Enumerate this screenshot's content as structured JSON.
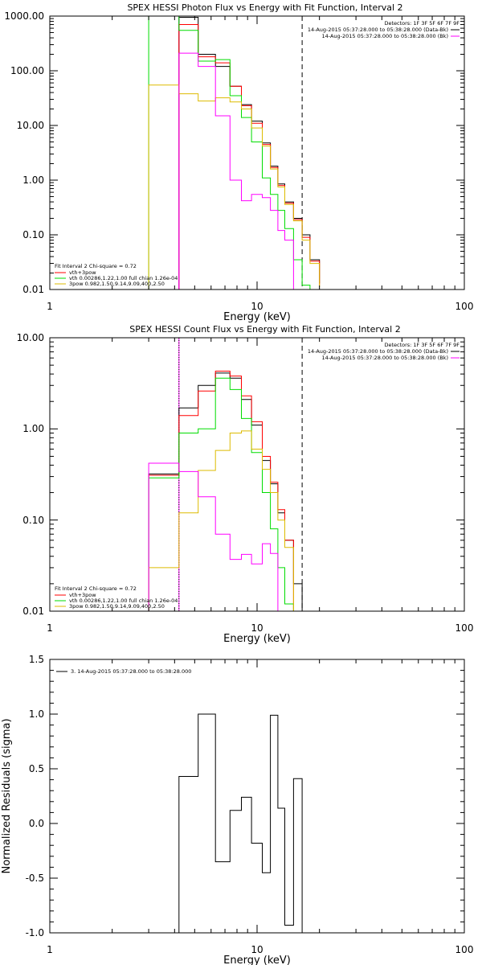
{
  "chart_data": [
    {
      "type": "line",
      "title": "SPEX HESSI Photon Flux vs Energy with Fit Function, Interval 2",
      "xlabel": "Energy (keV)",
      "ylabel": "",
      "xscale": "log",
      "yscale": "log",
      "xlim": [
        1,
        100
      ],
      "ylim": [
        0.01,
        1000
      ],
      "x_ticks": [
        "1",
        "10",
        "100"
      ],
      "y_ticks": [
        "0.01",
        "0.10",
        "1.00",
        "10.00",
        "100.00",
        "1000.00"
      ],
      "vlines": [
        {
          "x": 4.2,
          "color": "#ff00ff",
          "style": "solid"
        },
        {
          "x": 16.5,
          "color": "#000000",
          "style": "dashed"
        }
      ],
      "edges": [
        3.0,
        4.2,
        5.2,
        6.3,
        7.4,
        8.4,
        9.4,
        10.6,
        11.6,
        12.6,
        13.6,
        15.0,
        16.5,
        18.0,
        20.0
      ],
      "series": [
        {
          "name": "Data",
          "color": "#000000",
          "values": [
            null,
            950,
            200,
            120,
            52,
            24,
            12,
            4.8,
            1.8,
            0.85,
            0.4,
            0.2,
            0.1,
            0.035,
            0.013
          ]
        },
        {
          "name": "vth+3pow",
          "color": "#ff0000",
          "values": [
            null,
            700,
            180,
            140,
            52,
            23,
            11,
            4.5,
            1.7,
            0.8,
            0.38,
            0.19,
            0.09,
            0.033,
            0.012
          ]
        },
        {
          "name": "vth 0.00286,1.22,1.00 full chian 1.26e-04",
          "color": "#00dd00",
          "values": [
            1200,
            550,
            150,
            160,
            35,
            14,
            5.0,
            1.1,
            0.55,
            0.28,
            0.13,
            0.035,
            0.012,
            null,
            null
          ]
        },
        {
          "name": "3pow 0.982,1.50,9.14,9.09,400,2.50",
          "color": "#ddbb00",
          "values": [
            55,
            38,
            28,
            32,
            27,
            20,
            9.0,
            4.2,
            1.6,
            0.75,
            0.36,
            0.18,
            0.08,
            0.03,
            0.011
          ]
        },
        {
          "name": "",
          "color": "#ff00ff",
          "values": [
            null,
            210,
            120,
            15,
            1.0,
            0.42,
            0.55,
            0.48,
            0.28,
            0.12,
            0.08,
            null,
            null,
            null,
            null
          ]
        }
      ],
      "annotations": [
        "Detectors: 1F 3F 5F 6F 7F 9F",
        "14-Aug-2015 05:37:28.000 to 05:38:28.000 (Data-Bk)",
        "14-Aug-2015 05:37:28.000 to 05:38:28.000 (Bk)"
      ],
      "legend": {
        "title": "Fit Interval 2   Chi-square = 0.72",
        "placement": "bottom-left"
      }
    },
    {
      "type": "line",
      "title": "SPEX HESSI Count Flux vs Energy with Fit Function, Interval 2",
      "xlabel": "Energy (keV)",
      "ylabel": "",
      "xscale": "log",
      "yscale": "log",
      "xlim": [
        1,
        100
      ],
      "ylim": [
        0.01,
        10
      ],
      "x_ticks": [
        "1",
        "10",
        "100"
      ],
      "y_ticks": [
        "0.01",
        "0.10",
        "1.00",
        "10.00"
      ],
      "vlines": [
        {
          "x": 4.2,
          "color": "#ff00ff",
          "style": "solid"
        },
        {
          "x": 4.2,
          "color": "#000000",
          "style": "dotted"
        },
        {
          "x": 16.5,
          "color": "#000000",
          "style": "dashed"
        }
      ],
      "edges": [
        3.0,
        4.2,
        5.2,
        6.3,
        7.4,
        8.4,
        9.4,
        10.6,
        11.6,
        12.6,
        13.6,
        15.0,
        16.5
      ],
      "series": [
        {
          "name": "Data",
          "color": "#000000",
          "values": [
            0.32,
            1.7,
            3.0,
            4.1,
            3.6,
            2.1,
            1.1,
            0.45,
            0.25,
            0.12,
            0.06,
            0.02
          ]
        },
        {
          "name": "vth+3pow",
          "color": "#ff0000",
          "values": [
            0.31,
            1.4,
            2.6,
            4.3,
            3.8,
            2.3,
            1.2,
            0.5,
            0.26,
            0.13,
            0.06,
            null
          ]
        },
        {
          "name": "vth 0.00286,1.22,1.00 full chian 1.26e-04",
          "color": "#00dd00",
          "values": [
            0.29,
            0.9,
            1.0,
            3.6,
            2.7,
            1.3,
            0.55,
            0.2,
            0.08,
            0.03,
            0.012,
            null
          ]
        },
        {
          "name": "3pow 0.982,1.50,9.14,9.09,400,2.50",
          "color": "#ddbb00",
          "values": [
            0.03,
            0.12,
            0.35,
            0.58,
            0.9,
            0.95,
            0.6,
            0.36,
            0.2,
            0.1,
            0.05,
            null
          ]
        },
        {
          "name": "",
          "color": "#ff00ff",
          "values": [
            0.42,
            0.34,
            0.18,
            0.07,
            0.037,
            0.042,
            0.033,
            0.055,
            0.043,
            null,
            null,
            null
          ]
        }
      ],
      "annotations": [
        "Detectors: 1F 3F 5F 6F 7F 9F",
        "14-Aug-2015 05:37:28.000 to 05:38:28.000 (Data-Bk)",
        "14-Aug-2015 05:37:28.000 to 05:38:28.000 (Bk)"
      ],
      "legend": {
        "title": "Fit Interval 2   Chi-square = 0.72",
        "placement": "bottom-left"
      }
    },
    {
      "type": "line",
      "title": "",
      "xlabel": "Energy (keV)",
      "ylabel": "Normalized Residuals (sigma)",
      "xscale": "log",
      "yscale": "linear",
      "xlim": [
        1,
        100
      ],
      "ylim": [
        -1.0,
        1.5
      ],
      "x_ticks": [
        "1",
        "10",
        "100"
      ],
      "y_ticks": [
        "-1.0",
        "-0.5",
        "0.0",
        "0.5",
        "1.0",
        "1.5"
      ],
      "edges": [
        4.2,
        5.2,
        6.3,
        7.4,
        8.4,
        9.4,
        10.6,
        11.6,
        12.6,
        13.6,
        15.0,
        16.5
      ],
      "series": [
        {
          "name": "3. 14-Aug-2015 05:37:28.000 to 05:38:28.000",
          "color": "#000000",
          "values": [
            0.43,
            1.0,
            -0.35,
            0.12,
            0.24,
            -0.18,
            -0.45,
            0.99,
            0.14,
            -0.93,
            0.41
          ]
        }
      ],
      "legend": {
        "placement": "top-left"
      }
    }
  ]
}
